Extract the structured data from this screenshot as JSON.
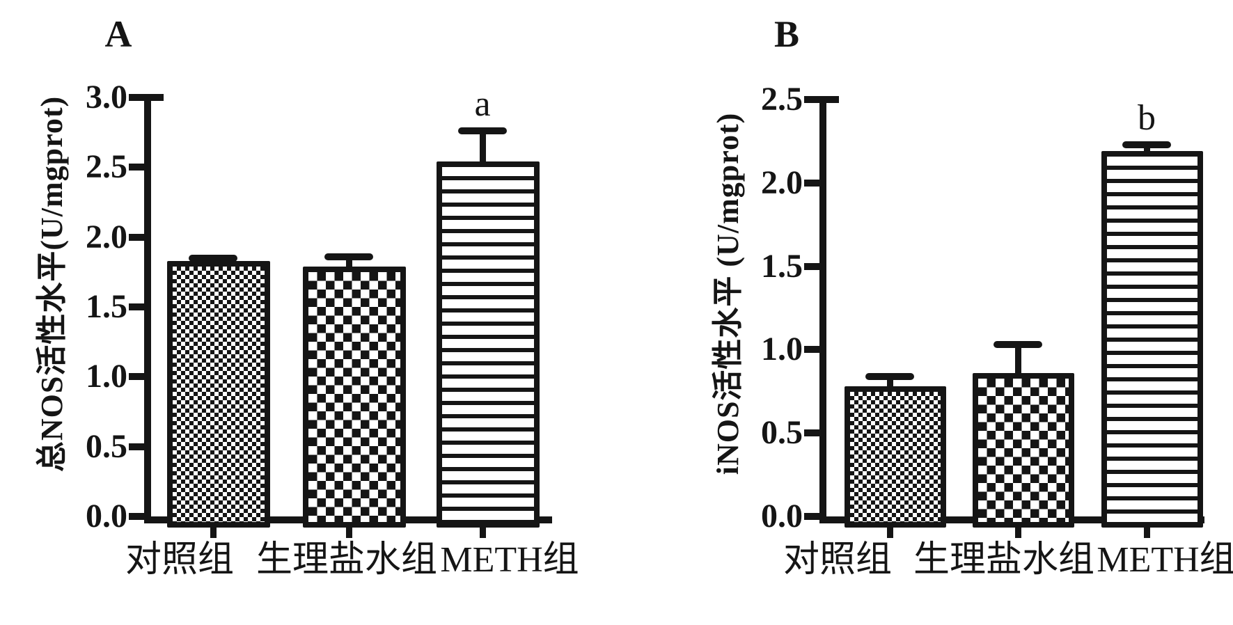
{
  "figure": {
    "background_color": "#ffffff",
    "ink_color": "#151515"
  },
  "chart_data": [
    {
      "type": "bar",
      "panel": "A",
      "title": "A",
      "ylabel": "总NOS活性水平(U/mgprot)",
      "xlabel": "",
      "ylim": [
        0.0,
        3.0
      ],
      "ytick_step": 0.5,
      "ytick_labels": [
        "3.0",
        "2.5",
        "2.0",
        "1.5",
        "1.0",
        "0.5",
        "0.0"
      ],
      "categories": [
        "对照组",
        "生理盐水组",
        "METH组"
      ],
      "values": [
        1.83,
        1.79,
        2.54
      ],
      "errors_plus": [
        0.02,
        0.07,
        0.22
      ],
      "significance_labels": [
        "",
        "",
        "a"
      ],
      "bar_patterns": [
        "fine-checker",
        "coarse-checker",
        "horizontal-lines"
      ],
      "grid": false,
      "legend": "none"
    },
    {
      "type": "bar",
      "panel": "B",
      "title": "B",
      "ylabel": "iNOS活性水平 (U/mgprot)",
      "xlabel": "",
      "ylim": [
        0.0,
        2.5
      ],
      "ytick_step": 0.5,
      "ytick_labels": [
        "2.5",
        "2.0",
        "1.5",
        "1.0",
        "0.5",
        "0.0"
      ],
      "categories": [
        "对照组",
        "生理盐水组",
        "METH组"
      ],
      "values": [
        0.78,
        0.86,
        2.19
      ],
      "errors_plus": [
        0.06,
        0.17,
        0.04
      ],
      "significance_labels": [
        "",
        "",
        "b"
      ],
      "bar_patterns": [
        "fine-checker",
        "coarse-checker",
        "horizontal-lines"
      ],
      "grid": false,
      "legend": "none"
    }
  ]
}
